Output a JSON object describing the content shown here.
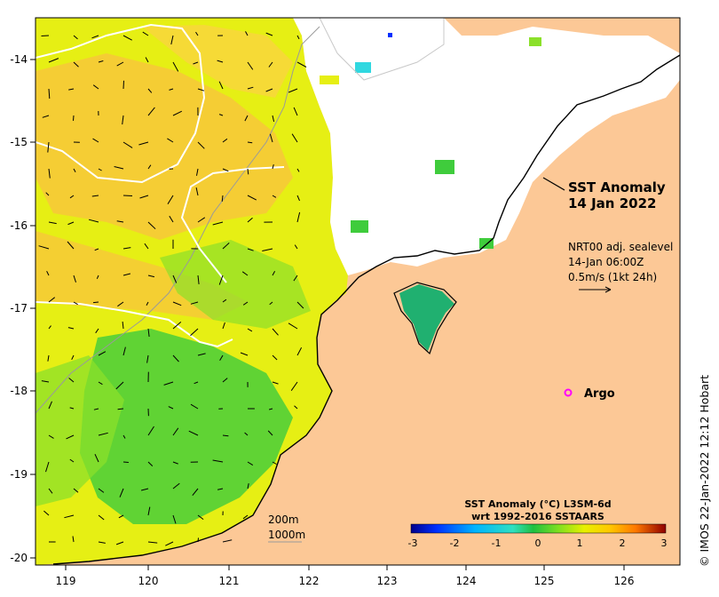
{
  "map": {
    "title": "SST Anomaly",
    "date": "14 Jan 2022",
    "current_info": {
      "line1": "NRT00 adj. sealevel",
      "line2": "14-Jan 06:00Z",
      "line3": "0.5m/s (1kt 24h)"
    },
    "argo_label": "Argo",
    "scale": {
      "label1": "200m",
      "label2": "1000m"
    },
    "colorbar": {
      "title": "SST Anomaly (°C) L3SM-6d",
      "subtitle": "wrt 1992-2016 SSTAARS",
      "ticks": [
        "-3",
        "-2",
        "-1",
        "0",
        "1",
        "2",
        "3"
      ],
      "colors": [
        "#00008b",
        "#0040ff",
        "#00b0ff",
        "#30e0d0",
        "#20c040",
        "#80e020",
        "#e0f000",
        "#ffd000",
        "#ff8c00",
        "#d03000",
        "#8b0000"
      ]
    },
    "credit": "© IMOS 22-Jan-2022 12:12 Hobart",
    "lon_ticks": [
      "119",
      "120",
      "121",
      "122",
      "123",
      "124",
      "125",
      "126"
    ],
    "lat_ticks": [
      "-14",
      "-15",
      "-16",
      "-17",
      "-18",
      "-19",
      "-20"
    ],
    "colors": {
      "land": "#fcc896",
      "cloud": "#ffffff",
      "sst_warm": "#f7c73a",
      "sst_mid": "#e6ef14",
      "sst_cool": "#3fcc3c",
      "argo": "#ff00ff"
    }
  }
}
